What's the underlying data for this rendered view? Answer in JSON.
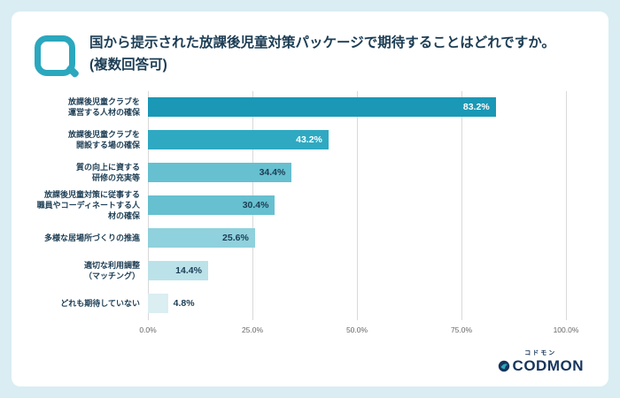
{
  "question": {
    "line1": "国から提示された放課後児童対策パッケージで期待することはどれですか。",
    "line2": "(複数回答可)"
  },
  "chart_data": {
    "type": "bar",
    "orientation": "horizontal",
    "title": "国から提示された放課後児童対策パッケージで期待することはどれですか。(複数回答可)",
    "categories": [
      "放課後児童クラブを\n運営する人材の確保",
      "放課後児童クラブを\n開設する場の確保",
      "質の向上に資する\n研修の充実等",
      "放課後児童対策に従事する\n職員やコーディネートする人\n材の確保",
      "多様な居場所づくりの推進",
      "適切な利用調整\n（マッチング）",
      "どれも期待していない"
    ],
    "values": [
      83.2,
      43.2,
      34.4,
      30.4,
      25.6,
      14.4,
      4.8
    ],
    "value_labels": [
      "83.2%",
      "43.2%",
      "34.4%",
      "30.4%",
      "25.6%",
      "14.4%",
      "4.8%"
    ],
    "bar_colors": [
      "#1a98b6",
      "#2fa9c1",
      "#66c0d0",
      "#66c0d0",
      "#8fd1dc",
      "#bce2e9",
      "#dbeef2"
    ],
    "label_colors": [
      "#ffffff",
      "#ffffff",
      "#1c3d54",
      "#1c3d54",
      "#1c3d54",
      "#1c3d54",
      "#1c3d54"
    ],
    "x_ticks": [
      "0.0%",
      "25.0%",
      "50.0%",
      "75.0%",
      "100.0%"
    ],
    "xlim": [
      0,
      100
    ],
    "grid": true,
    "legend": false
  },
  "colors": {
    "accent_teal": "#2ba7be",
    "navy_text": "#1c3d54",
    "page_background": "#d9edf2",
    "card_background": "#ffffff"
  },
  "logo": {
    "kana": "コドモン",
    "text": "CODMON"
  }
}
